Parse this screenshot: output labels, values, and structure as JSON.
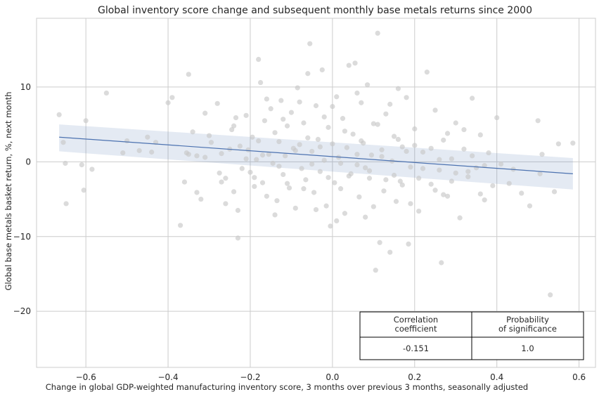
{
  "chart_data": {
    "type": "scatter",
    "title": "Global inventory score change and subsequent monthly base metals returns since 2000",
    "xlabel": "Change in global GDP-weighted manufacturing inventory score, 3 months over previous 3 months, seasonally adjusted",
    "ylabel": "Global base metals basket return, %, next month",
    "xlim": [
      -0.72,
      0.64
    ],
    "ylim": [
      -27.5,
      19.2
    ],
    "x_ticks": [
      -0.6,
      -0.4,
      -0.2,
      0.0,
      0.2,
      0.4,
      0.6
    ],
    "x_tick_labels": [
      "−0.6",
      "−0.4",
      "−0.2",
      "0.0",
      "0.2",
      "0.4",
      "0.6"
    ],
    "y_ticks": [
      -20,
      -10,
      0,
      10
    ],
    "y_tick_labels": [
      "−20",
      "−10",
      "0",
      "10"
    ],
    "grid": true,
    "colors": {
      "points": "#c8c8c8",
      "line": "#4c72b0",
      "band": "#4c72b0",
      "grid": "#cccccc",
      "frame": "#cccccc"
    },
    "regression": {
      "x": [
        -0.665,
        0.585
      ],
      "y": [
        3.3,
        -1.6
      ],
      "ci_lower": [
        1.4,
        -3.7
      ],
      "ci_upper": [
        5.0,
        0.5
      ]
    },
    "points": [
      [
        -0.665,
        6.3
      ],
      [
        -0.655,
        2.6
      ],
      [
        -0.65,
        -0.2
      ],
      [
        -0.648,
        -5.6
      ],
      [
        -0.61,
        -0.4
      ],
      [
        -0.605,
        -3.8
      ],
      [
        -0.6,
        5.5
      ],
      [
        -0.585,
        -1.0
      ],
      [
        -0.55,
        9.2
      ],
      [
        -0.51,
        1.2
      ],
      [
        -0.5,
        2.8
      ],
      [
        -0.47,
        1.5
      ],
      [
        -0.44,
        1.3
      ],
      [
        -0.43,
        2.6
      ],
      [
        -0.4,
        7.9
      ],
      [
        -0.39,
        8.6
      ],
      [
        -0.37,
        -8.5
      ],
      [
        -0.36,
        -2.7
      ],
      [
        -0.355,
        1.2
      ],
      [
        -0.35,
        11.7
      ],
      [
        -0.34,
        4.0
      ],
      [
        -0.33,
        0.8
      ],
      [
        -0.32,
        -5.0
      ],
      [
        -0.31,
        6.5
      ],
      [
        -0.3,
        3.5
      ],
      [
        -0.295,
        2.6
      ],
      [
        -0.28,
        7.8
      ],
      [
        -0.275,
        -1.5
      ],
      [
        -0.27,
        -2.7
      ],
      [
        -0.26,
        -5.6
      ],
      [
        -0.25,
        1.7
      ],
      [
        -0.245,
        4.3
      ],
      [
        -0.24,
        -4.0
      ],
      [
        -0.235,
        5.9
      ],
      [
        -0.23,
        -10.2
      ],
      [
        -0.225,
        2.1
      ],
      [
        -0.22,
        -0.9
      ],
      [
        -0.21,
        6.2
      ],
      [
        -0.205,
        1.6
      ],
      [
        -0.2,
        -1.4
      ],
      [
        -0.195,
        3.3
      ],
      [
        -0.19,
        -2.1
      ],
      [
        -0.185,
        0.3
      ],
      [
        -0.18,
        13.7
      ],
      [
        -0.175,
        10.6
      ],
      [
        -0.17,
        -2.8
      ],
      [
        -0.165,
        5.5
      ],
      [
        -0.16,
        -4.6
      ],
      [
        -0.155,
        1.0
      ],
      [
        -0.15,
        7.1
      ],
      [
        -0.145,
        -0.2
      ],
      [
        -0.14,
        3.9
      ],
      [
        -0.135,
        -5.2
      ],
      [
        -0.13,
        2.7
      ],
      [
        -0.125,
        8.2
      ],
      [
        -0.12,
        -1.7
      ],
      [
        -0.115,
        0.8
      ],
      [
        -0.11,
        4.8
      ],
      [
        -0.105,
        -3.5
      ],
      [
        -0.1,
        6.6
      ],
      [
        -0.095,
        1.8
      ],
      [
        -0.09,
        -6.2
      ],
      [
        -0.085,
        9.9
      ],
      [
        -0.08,
        2.3
      ],
      [
        -0.075,
        -0.9
      ],
      [
        -0.07,
        5.2
      ],
      [
        -0.065,
        -2.4
      ],
      [
        -0.06,
        11.8
      ],
      [
        -0.055,
        15.8
      ],
      [
        -0.05,
        1.4
      ],
      [
        -0.045,
        -4.1
      ],
      [
        -0.04,
        7.5
      ],
      [
        -0.035,
        3.0
      ],
      [
        -0.03,
        -1.3
      ],
      [
        -0.025,
        12.3
      ],
      [
        -0.02,
        0.2
      ],
      [
        -0.015,
        -5.9
      ],
      [
        -0.01,
        4.6
      ],
      [
        -0.005,
        -8.6
      ],
      [
        0.0,
        2.4
      ],
      [
        0.005,
        -2.8
      ],
      [
        0.01,
        8.7
      ],
      [
        0.015,
        0.6
      ],
      [
        0.02,
        -3.6
      ],
      [
        0.025,
        5.8
      ],
      [
        0.03,
        -6.9
      ],
      [
        0.035,
        1.9
      ],
      [
        0.04,
        12.9
      ],
      [
        0.045,
        -1.6
      ],
      [
        0.05,
        3.7
      ],
      [
        0.055,
        13.2
      ],
      [
        0.06,
        -0.4
      ],
      [
        0.065,
        -4.7
      ],
      [
        0.07,
        7.9
      ],
      [
        0.075,
        2.5
      ],
      [
        0.08,
        -7.4
      ],
      [
        0.085,
        10.3
      ],
      [
        0.09,
        -2.2
      ],
      [
        0.095,
        0.9
      ],
      [
        0.1,
        5.1
      ],
      [
        0.105,
        -14.5
      ],
      [
        0.11,
        17.2
      ],
      [
        0.115,
        -10.8
      ],
      [
        0.12,
        1.6
      ],
      [
        0.125,
        -3.9
      ],
      [
        0.13,
        6.4
      ],
      [
        0.14,
        -12.1
      ],
      [
        0.145,
        0.1
      ],
      [
        0.15,
        3.4
      ],
      [
        0.155,
        -5.3
      ],
      [
        0.16,
        9.8
      ],
      [
        0.165,
        -2.6
      ],
      [
        0.17,
        2.0
      ],
      [
        0.18,
        8.6
      ],
      [
        0.185,
        -11.0
      ],
      [
        0.19,
        -0.7
      ],
      [
        0.2,
        4.4
      ],
      [
        0.21,
        -6.6
      ],
      [
        0.22,
        1.3
      ],
      [
        0.23,
        12.0
      ],
      [
        0.24,
        -3.0
      ],
      [
        0.25,
        6.9
      ],
      [
        0.26,
        -1.1
      ],
      [
        0.265,
        -13.5
      ],
      [
        0.27,
        2.9
      ],
      [
        0.28,
        -4.6
      ],
      [
        0.29,
        0.4
      ],
      [
        0.3,
        5.2
      ],
      [
        0.31,
        -7.5
      ],
      [
        0.32,
        1.7
      ],
      [
        0.33,
        -2.0
      ],
      [
        0.34,
        8.5
      ],
      [
        0.35,
        -0.8
      ],
      [
        0.36,
        3.6
      ],
      [
        0.37,
        -5.1
      ],
      [
        0.38,
        1.2
      ],
      [
        0.39,
        -3.2
      ],
      [
        0.4,
        5.9
      ],
      [
        0.41,
        -0.3
      ],
      [
        0.43,
        -2.9
      ],
      [
        0.46,
        -4.2
      ],
      [
        0.48,
        -5.9
      ],
      [
        0.5,
        5.5
      ],
      [
        0.505,
        -1.6
      ],
      [
        0.51,
        1.0
      ],
      [
        0.53,
        -17.8
      ],
      [
        0.54,
        -4.0
      ],
      [
        0.55,
        2.4
      ],
      [
        0.585,
        2.5
      ],
      [
        -0.31,
        0.6
      ],
      [
        -0.27,
        1.1
      ],
      [
        -0.21,
        0.4
      ],
      [
        -0.17,
        0.9
      ],
      [
        -0.13,
        -0.6
      ],
      [
        -0.09,
        1.5
      ],
      [
        -0.05,
        -0.3
      ],
      [
        -0.03,
        2.0
      ],
      [
        0.02,
        -0.2
      ],
      [
        0.06,
        1.0
      ],
      [
        0.09,
        -1.2
      ],
      [
        0.12,
        0.7
      ],
      [
        0.15,
        -1.8
      ],
      [
        0.18,
        1.4
      ],
      [
        0.22,
        -0.9
      ],
      [
        0.26,
        0.3
      ],
      [
        0.3,
        -1.5
      ],
      [
        0.34,
        0.8
      ],
      [
        0.37,
        -0.5
      ],
      [
        0.44,
        -1.0
      ],
      [
        -0.35,
        1.0
      ],
      [
        -0.26,
        -2.2
      ],
      [
        -0.19,
        -3.3
      ],
      [
        -0.11,
        -2.9
      ],
      [
        -0.07,
        -3.6
      ],
      [
        -0.01,
        -2.1
      ],
      [
        0.04,
        -1.9
      ],
      [
        0.08,
        -0.8
      ],
      [
        0.13,
        -2.4
      ],
      [
        0.17,
        -3.1
      ],
      [
        0.21,
        -2.2
      ],
      [
        0.25,
        -3.8
      ],
      [
        0.29,
        -2.6
      ],
      [
        0.33,
        -1.3
      ],
      [
        -0.24,
        4.8
      ],
      [
        -0.18,
        2.8
      ],
      [
        -0.12,
        5.7
      ],
      [
        -0.06,
        3.2
      ],
      [
        -0.02,
        6.0
      ],
      [
        0.03,
        4.1
      ],
      [
        0.07,
        2.8
      ],
      [
        0.11,
        5.0
      ],
      [
        0.16,
        3.0
      ],
      [
        0.2,
        2.2
      ],
      [
        0.24,
        1.8
      ],
      [
        0.28,
        3.8
      ],
      [
        0.32,
        4.3
      ],
      [
        -0.16,
        8.4
      ],
      [
        -0.08,
        8.0
      ],
      [
        0.0,
        7.4
      ],
      [
        0.06,
        9.2
      ],
      [
        0.14,
        7.7
      ],
      [
        -0.45,
        3.3
      ],
      [
        -0.33,
        -4.1
      ],
      [
        -0.23,
        -6.5
      ],
      [
        -0.14,
        -7.1
      ],
      [
        -0.04,
        -6.4
      ],
      [
        0.01,
        -7.9
      ],
      [
        0.1,
        -6.0
      ],
      [
        0.19,
        -5.6
      ],
      [
        0.27,
        -4.4
      ],
      [
        0.36,
        -4.3
      ]
    ],
    "table": {
      "headers": [
        "Correlation\ncoefficient",
        "Probability\nof significance"
      ],
      "values": [
        "-0.151",
        "1.0"
      ]
    }
  }
}
